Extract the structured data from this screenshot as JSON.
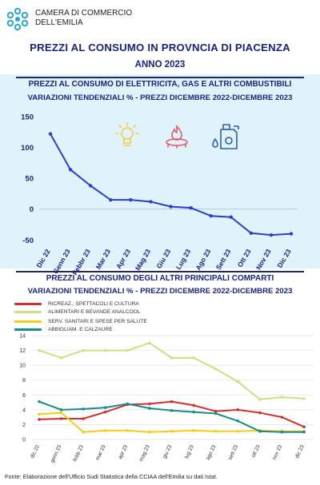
{
  "header": {
    "org_line1": "CAMERA DI COMMERCIO",
    "org_line2": "DELL'EMILIA",
    "logo_icon": "chamber-logo-icon"
  },
  "page_title": "PREZZI AL CONSUMO IN PROVNCIA DI PIACENZA",
  "year": "ANNO 2023",
  "colors": {
    "navy": "#1a237e",
    "line_blue": "#2b3fc8",
    "panel_bg": "#e0f3fb",
    "red": "#d32f2f",
    "lightgreen": "#c5e384",
    "yellow": "#f4cd1b",
    "teal": "#1a8a8a"
  },
  "footer": "Fonte: Elaborazione dell'Ufficio Sudi Statistica della CCIAA dell'Emilia su dati Istat.",
  "icons": [
    "light-bulb-icon",
    "gas-flame-icon",
    "fuel-canister-icon"
  ],
  "chart_data": [
    {
      "type": "line",
      "title": "PREZZI AL CONSUMO DI ELETTRICITA, GAS  E ALTRI COMBUSTIBILI",
      "subtitle": "VARIAZIONI  TENDENZIALI %  - PREZZI DICEMBRE 2022-DICEMBRE 2023",
      "xlabel": "",
      "ylabel": "",
      "categories": [
        "Dic 22",
        "Genn 23",
        "Febbr 23",
        "Mar 23",
        "Apr 23",
        "Mag 23",
        "Giu 23",
        "Lug 23",
        "Ago 23",
        "Sett 23",
        "Ott 23",
        "Nov 23",
        "Dic 23"
      ],
      "series": [
        {
          "values": [
            122,
            64,
            38,
            15,
            15,
            12,
            4,
            2,
            -11,
            -13,
            -39,
            -42,
            -40
          ]
        }
      ],
      "yticks": [
        150,
        100,
        50,
        0,
        -50
      ],
      "ylim": [
        -60,
        150
      ],
      "grid": false,
      "legend": "none"
    },
    {
      "type": "line",
      "title": "PREZZI AL CONSUMO DEGLI ALTRI PRINCIPALI COMPARTI",
      "subtitle": "VARIAZIONI  TENDENZIALI %  - PREZZI DICEMBRE 2022-DICEMBRE 2023",
      "xlabel": "",
      "ylabel": "",
      "categories": [
        "dic 22",
        "genn 23",
        "febb 23",
        "mar 23",
        "apr 23",
        "mag 23",
        "giu 23",
        "lug 23",
        "ago 23",
        "sett 23",
        "ott 23",
        "nov 23",
        "dic 23"
      ],
      "series": [
        {
          "name": "RICREAZ., SPETTACOLI E CULTURA",
          "color": "#d32f2f",
          "values": [
            2.7,
            2.8,
            2.8,
            3.7,
            4.7,
            4.8,
            5.1,
            4.6,
            3.8,
            4.0,
            3.6,
            3.0,
            1.7
          ]
        },
        {
          "name": "ALIMENTARI E BEVANDE ANALCOOL",
          "color": "#c5e384",
          "values": [
            12.0,
            11.0,
            12.0,
            12.0,
            12.0,
            13.0,
            11.0,
            11.0,
            9.5,
            7.8,
            5.4,
            5.7,
            5.5
          ]
        },
        {
          "name": "SERV. SANITARI E SPESE PER SALUTE",
          "color": "#f4cd1b",
          "values": [
            3.4,
            3.6,
            1.0,
            1.2,
            1.2,
            1.0,
            1.1,
            1.2,
            1.1,
            1.1,
            1.2,
            1.1,
            1.1
          ]
        },
        {
          "name": "ABBIGLIAM.  E CALZAURE",
          "color": "#1a8a8a",
          "values": [
            5.1,
            4.0,
            4.1,
            4.3,
            4.8,
            4.2,
            3.9,
            3.7,
            3.5,
            2.5,
            1.1,
            1.0,
            1.0
          ]
        }
      ],
      "yticks": [
        0,
        2,
        4,
        6,
        8,
        10,
        12,
        14
      ],
      "ylim": [
        0,
        14
      ],
      "grid": true,
      "legend": "top-left"
    }
  ]
}
